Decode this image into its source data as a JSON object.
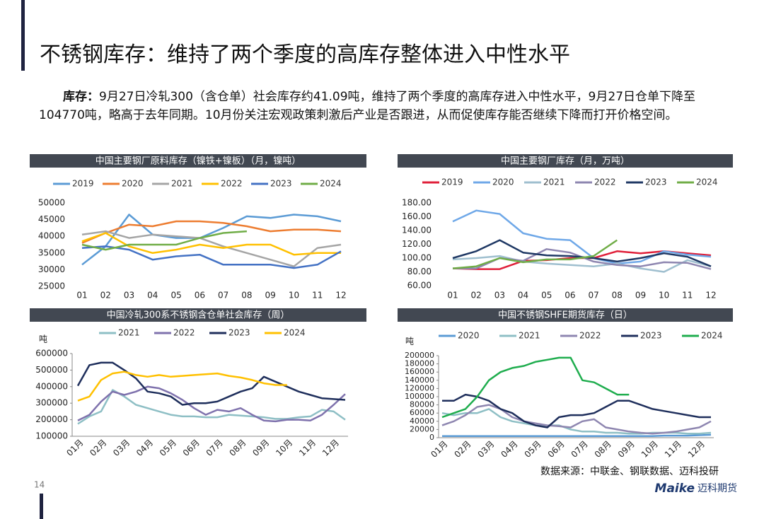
{
  "title": "不锈钢库存：维持了两个季度的高库存整体进入中性水平",
  "paragraph": {
    "label": "库存：",
    "text": "9月27日冷轧300（含仓单）社会库存约41.09吨，维持了两个季度的高库存进入中性水平，9月27日仓单下降至104770吨，略高于去年同期。10月份关注宏观政策刺激后产业是否跟进，从而促使库存能否继续下降而打开价格空间。"
  },
  "chart_data": [
    {
      "type": "line",
      "title": "中国主要钢厂原料库存（镍铁+镍板）（月，镍吨）",
      "categories": [
        "01",
        "02",
        "03",
        "04",
        "05",
        "06",
        "07",
        "08",
        "09",
        "10",
        "11",
        "12"
      ],
      "ylim": [
        25000,
        50000
      ],
      "yticks": [
        25000,
        30000,
        35000,
        40000,
        45000,
        50000
      ],
      "series": [
        {
          "name": "2019",
          "color": "#5b9bd5",
          "values": [
            31500,
            37000,
            46500,
            40500,
            39500,
            39500,
            42500,
            46000,
            45500,
            46500,
            46000,
            44500
          ]
        },
        {
          "name": "2020",
          "color": "#ed7d31",
          "values": [
            38000,
            41000,
            43500,
            43000,
            44500,
            44500,
            44000,
            43000,
            41500,
            42000,
            42000,
            41500
          ]
        },
        {
          "name": "2021",
          "color": "#a5a5a5",
          "values": [
            40500,
            41500,
            39500,
            40500,
            40000,
            39500,
            37000,
            35000,
            33000,
            31000,
            36500,
            37500
          ]
        },
        {
          "name": "2022",
          "color": "#ffc000",
          "values": [
            38500,
            41000,
            37000,
            35000,
            36000,
            37500,
            36500,
            37500,
            37500,
            34500,
            35000,
            35000
          ]
        },
        {
          "name": "2023",
          "color": "#4472c4",
          "values": [
            36500,
            37000,
            36000,
            33000,
            34000,
            34500,
            31500,
            31500,
            31500,
            30500,
            31500,
            35500
          ]
        },
        {
          "name": "2024",
          "color": "#70ad47",
          "values": [
            37500,
            36000,
            37500,
            37500,
            37500,
            39500,
            41000,
            41500,
            null,
            null,
            null,
            null
          ]
        }
      ]
    },
    {
      "type": "line",
      "title": "中国主要钢厂库存（月，万吨）",
      "categories": [
        "01",
        "02",
        "03",
        "04",
        "05",
        "06",
        "07",
        "08",
        "09",
        "10",
        "11",
        "12"
      ],
      "ylim": [
        60,
        180
      ],
      "yticks": [
        {
          "value": 60,
          "label": "60.00"
        },
        {
          "value": 80,
          "label": "80.00"
        },
        {
          "value": 100,
          "label": "100.00"
        },
        {
          "value": 120,
          "label": "120.00"
        },
        {
          "value": 140,
          "label": "140.00"
        },
        {
          "value": 160,
          "label": "160.00"
        },
        {
          "value": 180,
          "label": "180.00"
        }
      ],
      "series": [
        {
          "name": "2019",
          "color": "#e0203a",
          "values": [
            85,
            84,
            84,
            96,
            97,
            100,
            100,
            110,
            107,
            110,
            107,
            104
          ]
        },
        {
          "name": "2020",
          "color": "#6fa8e8",
          "values": [
            153,
            169,
            164,
            136,
            128,
            126,
            100,
            92,
            95,
            110,
            105,
            102
          ]
        },
        {
          "name": "2021",
          "color": "#9fbfcf",
          "values": [
            98,
            100,
            103,
            95,
            92,
            90,
            88,
            92,
            85,
            80,
            97,
            88
          ]
        },
        {
          "name": "2022",
          "color": "#8e86b0",
          "values": [
            85,
            85,
            100,
            96,
            113,
            108,
            95,
            90,
            88,
            94,
            93,
            84
          ]
        },
        {
          "name": "2023",
          "color": "#1f3864",
          "values": [
            100,
            110,
            126,
            108,
            104,
            103,
            100,
            95,
            100,
            107,
            102,
            88
          ]
        },
        {
          "name": "2024",
          "color": "#70ad47",
          "values": [
            85,
            88,
            100,
            94,
            98,
            98,
            103,
            126,
            null,
            null,
            null,
            null
          ]
        }
      ]
    },
    {
      "type": "line",
      "title": "中国冷轧300系不锈钢含仓单社会库存（周）",
      "y_label": "吨",
      "categories": [
        "01月",
        null,
        "02月",
        null,
        "03月",
        null,
        "04月",
        null,
        "05月",
        null,
        "06月",
        null,
        "07月",
        null,
        "08月",
        null,
        "09月",
        null,
        "10月",
        null,
        "11月",
        null,
        "12月",
        null
      ],
      "ylim": [
        100000,
        600000
      ],
      "yticks": [
        100000,
        200000,
        300000,
        400000,
        500000,
        600000
      ],
      "series": [
        {
          "name": "2021",
          "color": "#8ebfc5",
          "values": [
            175000,
            220000,
            250000,
            380000,
            340000,
            290000,
            270000,
            250000,
            230000,
            220000,
            220000,
            215000,
            215000,
            230000,
            225000,
            220000,
            215000,
            205000,
            205000,
            215000,
            220000,
            260000,
            250000,
            200000
          ]
        },
        {
          "name": "2022",
          "color": "#7f72ad",
          "values": [
            195000,
            230000,
            310000,
            370000,
            350000,
            370000,
            400000,
            390000,
            360000,
            320000,
            270000,
            230000,
            260000,
            250000,
            270000,
            230000,
            195000,
            190000,
            200000,
            200000,
            195000,
            230000,
            290000,
            355000
          ]
        },
        {
          "name": "2023",
          "color": "#1f2f5c",
          "values": [
            405000,
            530000,
            545000,
            545000,
            500000,
            450000,
            370000,
            360000,
            340000,
            290000,
            300000,
            300000,
            310000,
            340000,
            370000,
            390000,
            460000,
            430000,
            400000,
            370000,
            350000,
            330000,
            325000,
            320000
          ]
        },
        {
          "name": "2024",
          "color": "#ffc000",
          "values": [
            315000,
            340000,
            440000,
            480000,
            490000,
            470000,
            460000,
            470000,
            460000,
            465000,
            470000,
            475000,
            480000,
            465000,
            455000,
            440000,
            420000,
            410000,
            410000,
            null,
            null,
            null,
            null,
            null
          ]
        }
      ]
    },
    {
      "type": "line",
      "title": "中国不锈钢SHFE期货库存（日）",
      "y_label": "吨",
      "categories": [
        "01月",
        null,
        "02月",
        null,
        "03月",
        null,
        "04月",
        null,
        "05月",
        null,
        "06月",
        null,
        "07月",
        null,
        "08月",
        null,
        "09月",
        null,
        "10月",
        null,
        "11月",
        null,
        "12月",
        null
      ],
      "ylim": [
        0,
        200000
      ],
      "yticks": [
        0,
        20000,
        40000,
        60000,
        80000,
        100000,
        120000,
        140000,
        160000,
        180000,
        200000
      ],
      "series": [
        {
          "name": "2020",
          "color": "#5b9bd5",
          "values": [
            4000,
            4000,
            4000,
            4000,
            4000,
            4000,
            4000,
            4000,
            4000,
            4000,
            4000,
            4000,
            4000,
            4000,
            4000,
            4000,
            4000,
            4000,
            4000,
            5000,
            5000,
            5000,
            6000,
            7000
          ]
        },
        {
          "name": "2021",
          "color": "#8ebfc5",
          "values": [
            60000,
            55000,
            60000,
            60000,
            70000,
            50000,
            40000,
            35000,
            30000,
            30000,
            30000,
            20000,
            15000,
            15000,
            12000,
            12000,
            10000,
            10000,
            12000,
            12000,
            12000,
            10000,
            10000,
            12000
          ]
        },
        {
          "name": "2022",
          "color": "#8e86b0",
          "values": [
            30000,
            40000,
            55000,
            75000,
            80000,
            70000,
            50000,
            40000,
            35000,
            30000,
            28000,
            25000,
            40000,
            45000,
            25000,
            20000,
            15000,
            12000,
            10000,
            12000,
            15000,
            20000,
            25000,
            40000
          ]
        },
        {
          "name": "2023",
          "color": "#1f2f5c",
          "values": [
            90000,
            90000,
            105000,
            100000,
            90000,
            70000,
            60000,
            40000,
            30000,
            25000,
            50000,
            55000,
            55000,
            60000,
            75000,
            90000,
            90000,
            80000,
            70000,
            65000,
            60000,
            55000,
            50000,
            50000
          ]
        },
        {
          "name": "2024",
          "color": "#1fad4e",
          "values": [
            50000,
            60000,
            70000,
            100000,
            140000,
            160000,
            170000,
            175000,
            185000,
            190000,
            195000,
            195000,
            140000,
            135000,
            120000,
            105000,
            105000,
            null,
            null,
            null,
            null,
            null,
            null,
            null
          ]
        }
      ]
    }
  ],
  "source": "数据来源：中联金、钢联数据、迈科投研",
  "page_number": "14",
  "logo_en": "Maike",
  "logo_cn": "迈科期货"
}
